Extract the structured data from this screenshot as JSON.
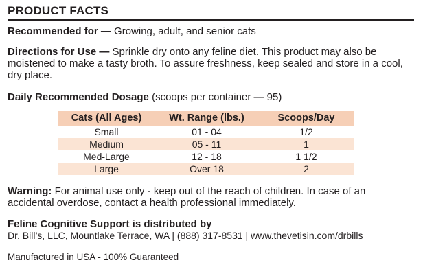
{
  "title": "PRODUCT FACTS",
  "recommended": {
    "label": "Recommended for —",
    "text": " Growing, adult, and senior cats"
  },
  "directions": {
    "label": "Directions for Use —",
    "text": " Sprinkle dry onto any feline diet. This product may also be moistened to make a tasty broth. To assure freshness, keep sealed and store in a cool, dry place."
  },
  "dosage_heading": {
    "label": "Daily Recommended Dosage",
    "text": " (scoops per container — 95)"
  },
  "dosage_table": {
    "headers": [
      "Cats (All Ages)",
      "Wt. Range (lbs.)",
      "Scoops/Day"
    ],
    "rows": [
      [
        "Small",
        "01 - 04",
        "1/2"
      ],
      [
        "Medium",
        "05 - 11",
        "1"
      ],
      [
        "Med-Large",
        "12 - 18",
        "1 1/2"
      ],
      [
        "Large",
        "Over 18",
        "2"
      ]
    ]
  },
  "warning": {
    "label": "Warning:",
    "text": " For animal use only - keep out of the reach of children. In case of an accidental overdose, contact a health professional immediately."
  },
  "distributor": {
    "heading": "Feline Cognitive Support is distributed by",
    "address": "Dr. Bill’s, LLC, Mountlake Terrace, WA | (888) 317-8531 | www.thevetisin.com/drbills"
  },
  "footer": "Manufactured in USA - 100% Guaranteed",
  "colors": {
    "header_fill": "#f6cfb6",
    "row_fill": "#fbe4d4",
    "text": "#231f20"
  }
}
